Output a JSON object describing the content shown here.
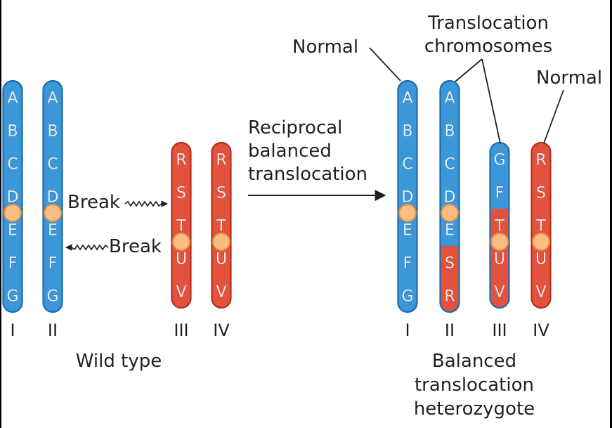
{
  "colors": {
    "blue_fill": "#3c97d8",
    "blue_edge": "#1b6bb0",
    "red_fill": "#e2523c",
    "red_edge": "#b52f1f",
    "centromere": "#fbbd84",
    "centromere_edge": "#e8913f",
    "text": "#231f20"
  },
  "labels": {
    "wild_type": "Wild type",
    "break": "Break",
    "arrow_text": [
      "Reciprocal",
      "balanced",
      "translocation"
    ],
    "normal": "Normal",
    "translocation_chromosomes": [
      "Translocation",
      "chromosomes"
    ],
    "balanced_heterozygote": [
      "Balanced",
      "translocation",
      "heterozygote"
    ]
  },
  "roman_numerals": {
    "wild": [
      "I",
      "II",
      "III",
      "IV"
    ],
    "hetero": [
      "I",
      "II",
      "III",
      "IV"
    ]
  },
  "chromosomes": {
    "wild": [
      {
        "name": "I",
        "genes": [
          "A",
          "B",
          "C",
          "D",
          "E",
          "F",
          "G"
        ],
        "colors": [
          "blue",
          "blue",
          "blue",
          "blue",
          "blue",
          "blue",
          "blue"
        ]
      },
      {
        "name": "II",
        "genes": [
          "A",
          "B",
          "C",
          "D",
          "E",
          "F",
          "G"
        ],
        "colors": [
          "blue",
          "blue",
          "blue",
          "blue",
          "blue",
          "blue",
          "blue"
        ]
      },
      {
        "name": "III",
        "genes": [
          "R",
          "S",
          "T",
          "U",
          "V"
        ],
        "colors": [
          "red",
          "red",
          "red",
          "red",
          "red"
        ]
      },
      {
        "name": "IV",
        "genes": [
          "R",
          "S",
          "T",
          "U",
          "V"
        ],
        "colors": [
          "red",
          "red",
          "red",
          "red",
          "red"
        ]
      }
    ],
    "hetero": [
      {
        "name": "I",
        "genes": [
          "A",
          "B",
          "C",
          "D",
          "E",
          "F",
          "G"
        ],
        "colors": [
          "blue",
          "blue",
          "blue",
          "blue",
          "blue",
          "blue",
          "blue"
        ]
      },
      {
        "name": "II",
        "genes": [
          "A",
          "B",
          "C",
          "D",
          "E",
          "S",
          "R"
        ],
        "colors": [
          "blue",
          "blue",
          "blue",
          "blue",
          "blue",
          "red",
          "red"
        ]
      },
      {
        "name": "III",
        "genes": [
          "G",
          "F",
          "T",
          "U",
          "V"
        ],
        "colors": [
          "blue",
          "blue",
          "red",
          "red",
          "red"
        ]
      },
      {
        "name": "IV",
        "genes": [
          "R",
          "S",
          "T",
          "U",
          "V"
        ],
        "colors": [
          "red",
          "red",
          "red",
          "red",
          "red"
        ]
      }
    ]
  }
}
